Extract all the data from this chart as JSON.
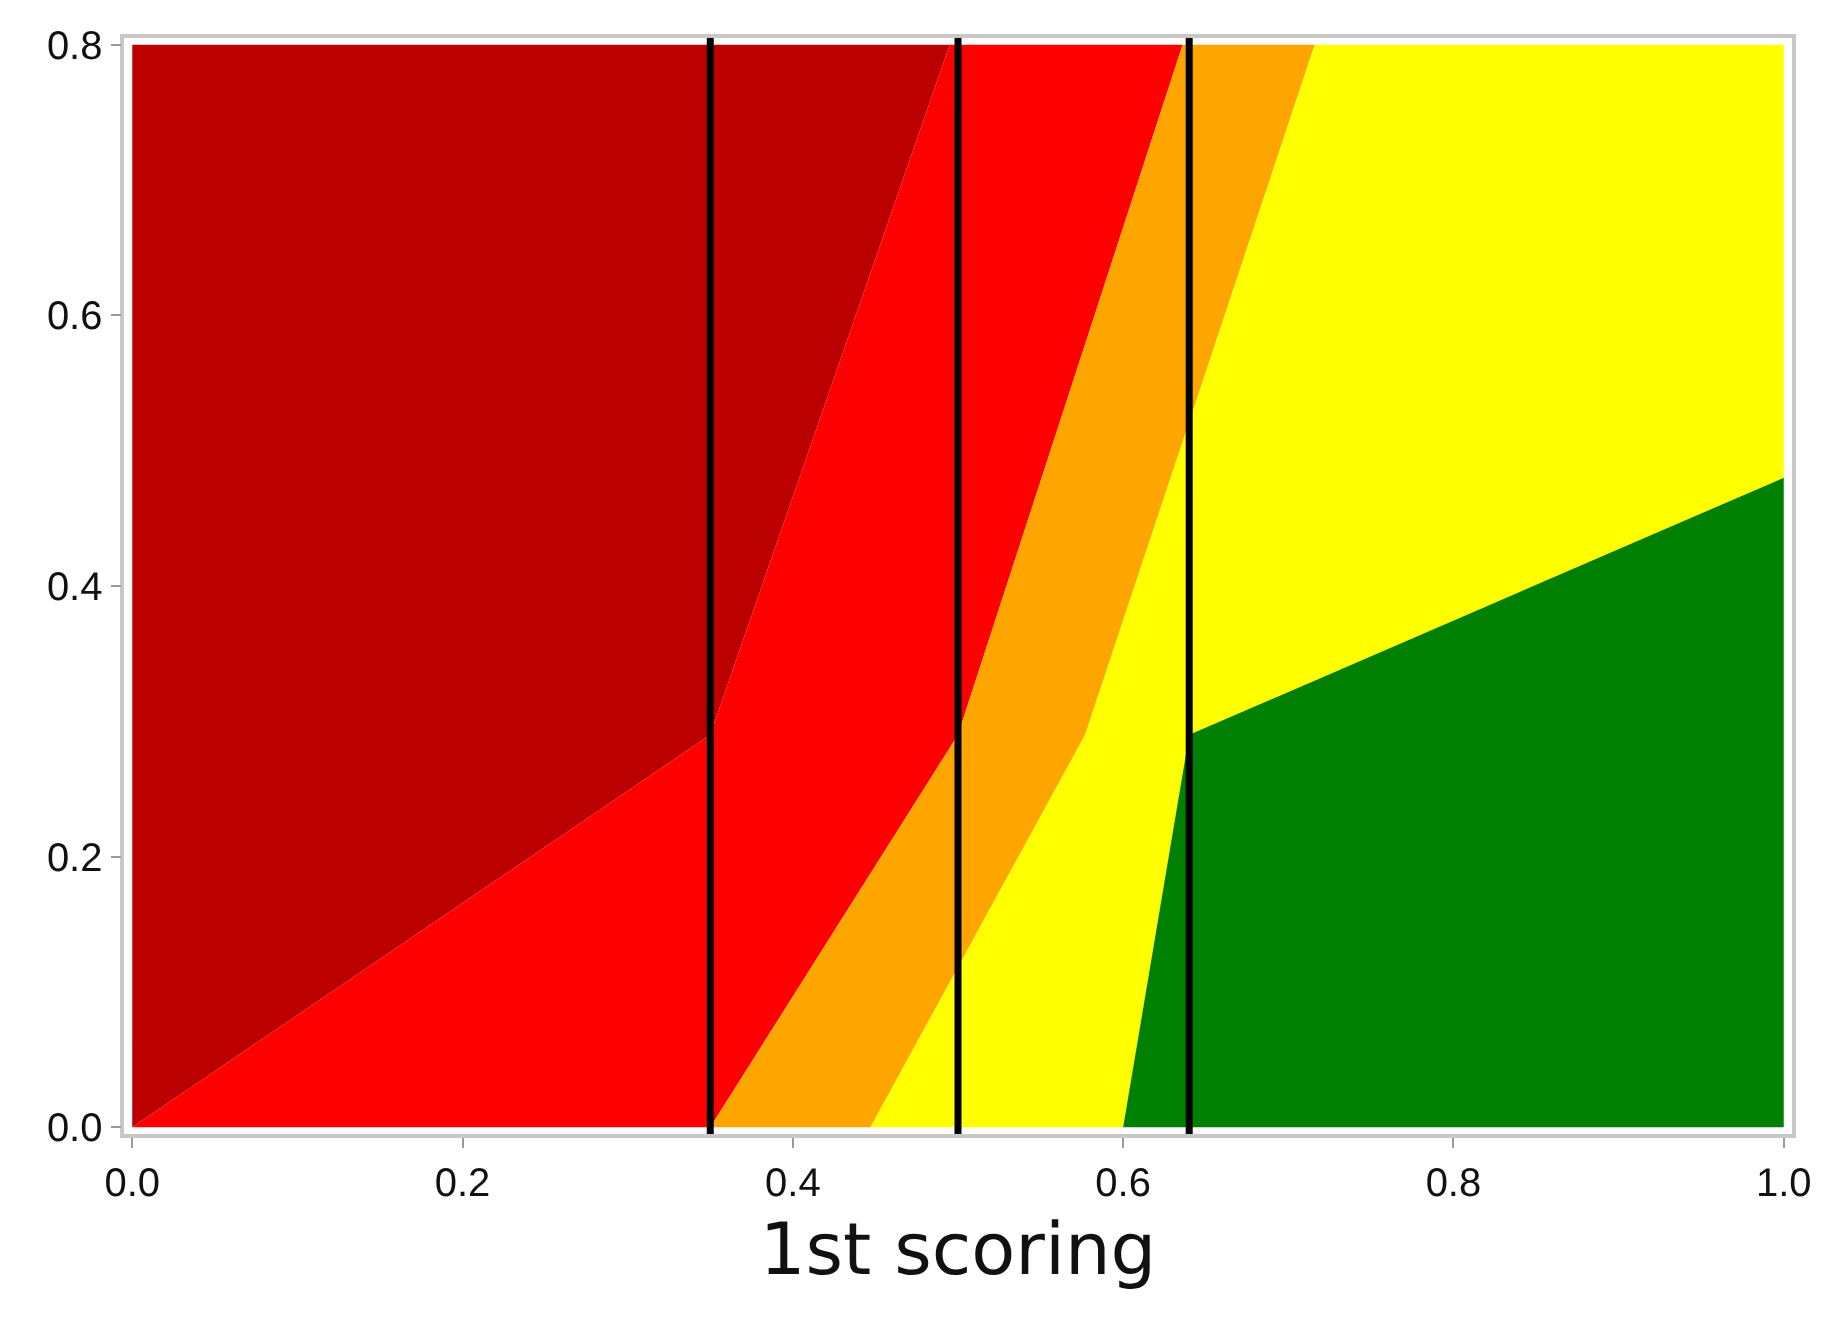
{
  "chart_data": {
    "type": "area",
    "xlabel": "1st scoring",
    "xlim": [
      -0.005,
      1.005
    ],
    "ylim": [
      -0.005,
      0.805
    ],
    "xticks": [
      {
        "value": 0,
        "label": "0.0"
      },
      {
        "value": 0.2,
        "label": "0.2"
      },
      {
        "value": 0.4,
        "label": "0.4"
      },
      {
        "value": 0.6,
        "label": "0.6"
      },
      {
        "value": 0.8,
        "label": "0.8"
      },
      {
        "value": 1,
        "label": "1.0"
      }
    ],
    "yticks": [
      {
        "value": 0,
        "label": "0.0"
      },
      {
        "value": 0.2,
        "label": "0.2"
      },
      {
        "value": 0.4,
        "label": "0.4"
      },
      {
        "value": 0.6,
        "label": "0.6"
      },
      {
        "value": 0.8,
        "label": "0.8"
      }
    ],
    "series": [
      {
        "color": "#bb0000",
        "x": [
          0,
          0.35,
          0.495,
          0,
          0
        ],
        "values": [
          0,
          0.29,
          0.8,
          0.8,
          0
        ]
      },
      {
        "color": "#ff0000",
        "x": [
          0,
          0.35,
          0.495,
          0.636,
          0.5,
          0.35,
          0
        ],
        "values": [
          0,
          0.29,
          0.8,
          0.8,
          0.29,
          0,
          0
        ]
      },
      {
        "color": "#ffa500",
        "x": [
          0.35,
          0.5,
          0.636,
          0.716,
          0.577,
          0.447,
          0.35
        ],
        "values": [
          0,
          0.29,
          0.8,
          0.8,
          0.29,
          0,
          0
        ]
      },
      {
        "color": "#ffff00",
        "x": [
          0.447,
          0.577,
          0.716,
          1,
          1,
          0.64,
          0.6,
          0.447
        ],
        "values": [
          0,
          0.29,
          0.8,
          0.8,
          0.48,
          0.29,
          0,
          0
        ]
      },
      {
        "color": "#008000",
        "x": [
          0.6,
          0.64,
          1,
          1,
          0.6
        ],
        "values": [
          0,
          0.29,
          0.48,
          0,
          0
        ]
      }
    ],
    "ref_lines": [
      {
        "axis": "x",
        "value": 0.35,
        "color": "#000000"
      },
      {
        "axis": "x",
        "value": 0.5,
        "color": "#000000"
      },
      {
        "axis": "x",
        "value": 0.64,
        "color": "#000000"
      }
    ]
  }
}
